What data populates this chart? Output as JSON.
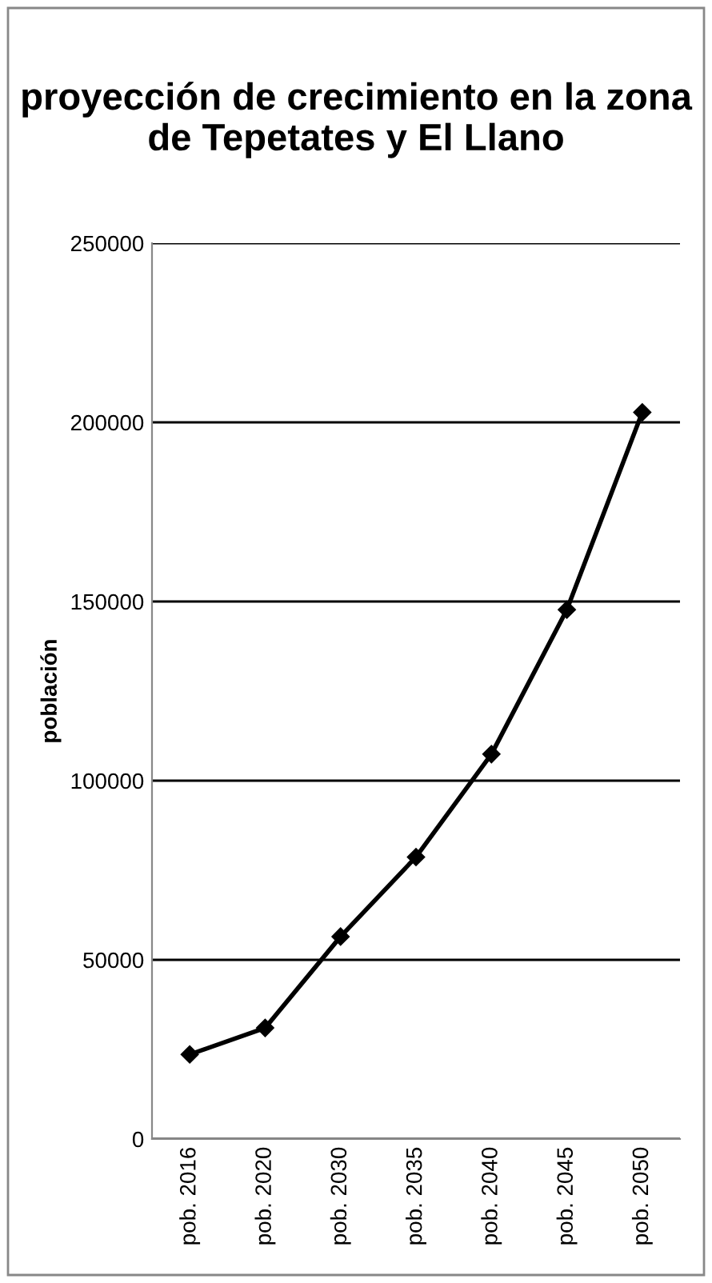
{
  "chart_data": {
    "type": "line",
    "title": "proyección de crecimiento en la zona de Tepetates y El Llano",
    "ylabel": "población",
    "categories": [
      "pob. 2016",
      "pob. 2020",
      "pob. 2030",
      "pob. 2035",
      "pob. 2040",
      "pob. 2045",
      "pob. 2050"
    ],
    "series": [
      {
        "color": "#000000",
        "values": [
          23600,
          31000,
          56500,
          78700,
          107400,
          147700,
          202800
        ]
      }
    ],
    "ylim": [
      0,
      250000
    ],
    "yticks": [
      0,
      50000,
      100000,
      150000,
      200000,
      250000
    ],
    "grid": "y",
    "marker": "diamond",
    "legend": false
  }
}
